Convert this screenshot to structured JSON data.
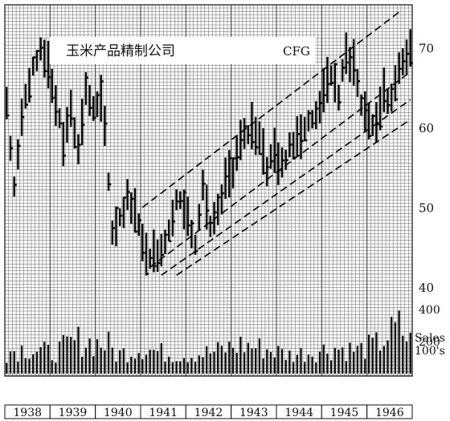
{
  "chart_data": {
    "type": "bar",
    "subtype": "monthly high-low-close price bars with volume",
    "title": "玉米产品精制公司",
    "ticker": "CFG",
    "x_range": [
      "1938-01",
      "1946-12"
    ],
    "years": [
      "1938",
      "1939",
      "1940",
      "1941",
      "1942",
      "1943",
      "1944",
      "1945",
      "1946"
    ],
    "y_ticks": [
      40,
      50,
      60,
      70
    ],
    "ylim": [
      38,
      75
    ],
    "volume_label_lines": [
      "Sales",
      "100's"
    ],
    "volume_ticks": [
      200,
      400
    ],
    "volume_lim": [
      0,
      600
    ],
    "grid": true,
    "trend_channel_lines": [
      {
        "from": [
          "1941-01",
          50
        ],
        "to": [
          "1946-09",
          74.5
        ]
      },
      {
        "from": [
          "1941-03",
          42.5
        ],
        "to": [
          "1946-12",
          67
        ]
      },
      {
        "from": [
          "1941-06",
          41.5
        ],
        "to": [
          "1946-12",
          63.5
        ]
      },
      {
        "from": [
          "1941-10",
          41.5
        ],
        "to": [
          "1946-12",
          61
        ]
      }
    ],
    "price_points": [
      {
        "t": "1938-01",
        "v": 63
      },
      {
        "t": "1938-03",
        "v": 52
      },
      {
        "t": "1938-05",
        "v": 62
      },
      {
        "t": "1938-08",
        "v": 67
      },
      {
        "t": "1938-10",
        "v": 70
      },
      {
        "t": "1938-12",
        "v": 68
      },
      {
        "t": "1939-02",
        "v": 63
      },
      {
        "t": "1939-04",
        "v": 58
      },
      {
        "t": "1939-06",
        "v": 63
      },
      {
        "t": "1939-08",
        "v": 57
      },
      {
        "t": "1939-10",
        "v": 65
      },
      {
        "t": "1939-12",
        "v": 62
      },
      {
        "t": "1940-02",
        "v": 63
      },
      {
        "t": "1940-03",
        "v": 60
      },
      {
        "t": "1940-05",
        "v": 47
      },
      {
        "t": "1940-07",
        "v": 49
      },
      {
        "t": "1940-09",
        "v": 51
      },
      {
        "t": "1940-11",
        "v": 50
      },
      {
        "t": "1941-01",
        "v": 45
      },
      {
        "t": "1941-04",
        "v": 44
      },
      {
        "t": "1941-07",
        "v": 46
      },
      {
        "t": "1941-10",
        "v": 51
      },
      {
        "t": "1941-12",
        "v": 50
      },
      {
        "t": "1942-03",
        "v": 46
      },
      {
        "t": "1942-05",
        "v": 53
      },
      {
        "t": "1942-07",
        "v": 47
      },
      {
        "t": "1942-09",
        "v": 49
      },
      {
        "t": "1942-11",
        "v": 53
      },
      {
        "t": "1943-01",
        "v": 55
      },
      {
        "t": "1943-03",
        "v": 58
      },
      {
        "t": "1943-06",
        "v": 60
      },
      {
        "t": "1943-08",
        "v": 59
      },
      {
        "t": "1943-10",
        "v": 55
      },
      {
        "t": "1943-12",
        "v": 57
      },
      {
        "t": "1944-02",
        "v": 55
      },
      {
        "t": "1944-04",
        "v": 58
      },
      {
        "t": "1944-06",
        "v": 59
      },
      {
        "t": "1944-08",
        "v": 60
      },
      {
        "t": "1944-10",
        "v": 61
      },
      {
        "t": "1945-01",
        "v": 64
      },
      {
        "t": "1945-03",
        "v": 67
      },
      {
        "t": "1945-05",
        "v": 64
      },
      {
        "t": "1945-07",
        "v": 69
      },
      {
        "t": "1945-09",
        "v": 68
      },
      {
        "t": "1945-11",
        "v": 63
      },
      {
        "t": "1946-01",
        "v": 61
      },
      {
        "t": "1946-03",
        "v": 60
      },
      {
        "t": "1946-05",
        "v": 65
      },
      {
        "t": "1946-07",
        "v": 63
      },
      {
        "t": "1946-09",
        "v": 68
      },
      {
        "t": "1946-12",
        "v": 70
      }
    ],
    "volume_points": [
      {
        "t": "1938-01",
        "v": 150
      },
      {
        "t": "1938-06",
        "v": 180
      },
      {
        "t": "1939-01",
        "v": 140
      },
      {
        "t": "1939-08",
        "v": 230
      },
      {
        "t": "1940-04",
        "v": 200
      },
      {
        "t": "1940-06",
        "v": 130
      },
      {
        "t": "1941-01",
        "v": 180
      },
      {
        "t": "1941-07",
        "v": 140
      },
      {
        "t": "1942-01",
        "v": 130
      },
      {
        "t": "1942-08",
        "v": 150
      },
      {
        "t": "1943-03",
        "v": 200
      },
      {
        "t": "1943-10",
        "v": 170
      },
      {
        "t": "1944-04",
        "v": 130
      },
      {
        "t": "1944-10",
        "v": 150
      },
      {
        "t": "1945-04",
        "v": 180
      },
      {
        "t": "1945-10",
        "v": 160
      },
      {
        "t": "1946-03",
        "v": 200
      },
      {
        "t": "1946-09",
        "v": 320
      },
      {
        "t": "1946-12",
        "v": 220
      }
    ]
  }
}
